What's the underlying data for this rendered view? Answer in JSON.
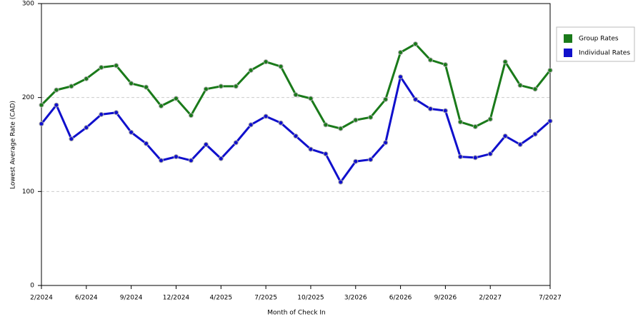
{
  "chart_data": {
    "type": "line",
    "xlabel": "Month of Check In",
    "ylabel": "Lowest Average Rate (CAD)",
    "categories": [
      "2/2024",
      null,
      null,
      "6/2024",
      null,
      null,
      "9/2024",
      null,
      null,
      "12/2024",
      null,
      null,
      "4/2025",
      null,
      null,
      "7/2025",
      null,
      null,
      "10/2025",
      null,
      null,
      "3/2026",
      null,
      null,
      "6/2026",
      null,
      null,
      "9/2026",
      null,
      null,
      "2/2027",
      null,
      null,
      null,
      "7/2027"
    ],
    "series": [
      {
        "name": "Group Rates",
        "color": "#1a7a1a",
        "values": [
          192,
          208,
          212,
          220,
          232,
          234,
          215,
          211,
          191,
          199,
          181,
          209,
          212,
          212,
          229,
          238,
          233,
          203,
          199,
          171,
          167,
          176,
          179,
          198,
          248,
          257,
          240,
          235,
          174,
          169,
          177,
          238,
          213,
          209,
          229
        ]
      },
      {
        "name": "Individual Rates",
        "color": "#1010cc",
        "values": [
          172,
          192,
          156,
          168,
          182,
          184,
          163,
          151,
          133,
          137,
          133,
          150,
          135,
          152,
          171,
          180,
          173,
          159,
          145,
          140,
          110,
          132,
          134,
          152,
          222,
          198,
          188,
          186,
          137,
          136,
          140,
          159,
          150,
          161,
          175
        ]
      }
    ],
    "ylim": [
      0,
      300
    ],
    "yticks": [
      0,
      100,
      200,
      300
    ],
    "grid": true,
    "legend": "right"
  }
}
